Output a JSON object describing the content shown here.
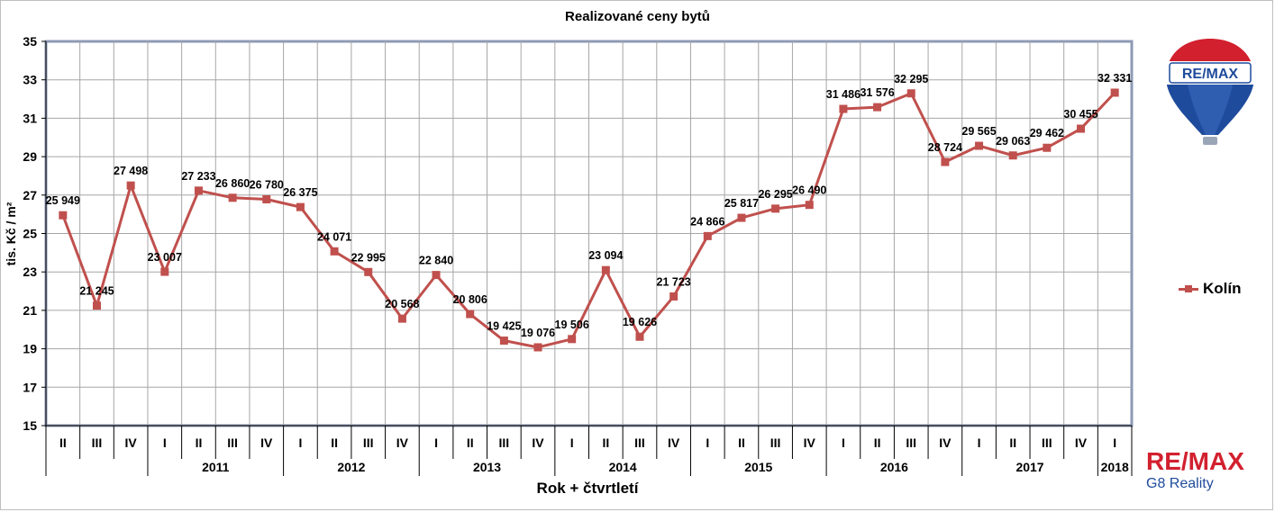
{
  "chart_data": {
    "type": "line",
    "title": "Realizované ceny bytů",
    "xlabel": "Rok + čtvrtletí",
    "ylabel": "tis. Kč / m²",
    "ylim": [
      15,
      35
    ],
    "y_ticks": [
      "15",
      "17",
      "19",
      "21",
      "23",
      "25",
      "27",
      "29",
      "31",
      "33",
      "35"
    ],
    "grid": true,
    "legend_position": "right",
    "categories": [
      "II",
      "III",
      "IV",
      "I",
      "II",
      "III",
      "IV",
      "I",
      "II",
      "III",
      "IV",
      "I",
      "II",
      "III",
      "IV",
      "I",
      "II",
      "III",
      "IV",
      "I",
      "II",
      "III",
      "IV",
      "I",
      "II",
      "III",
      "IV",
      "I",
      "II",
      "III",
      "IV",
      "I"
    ],
    "year_groups": [
      {
        "label": "",
        "start": 0,
        "end": 2
      },
      {
        "label": "2011",
        "start": 3,
        "end": 6
      },
      {
        "label": "2012",
        "start": 7,
        "end": 10
      },
      {
        "label": "2013",
        "start": 11,
        "end": 14
      },
      {
        "label": "2014",
        "start": 15,
        "end": 18
      },
      {
        "label": "2015",
        "start": 19,
        "end": 22
      },
      {
        "label": "2016",
        "start": 23,
        "end": 26
      },
      {
        "label": "2017",
        "start": 27,
        "end": 30
      },
      {
        "label": "2018",
        "start": 31,
        "end": 31
      }
    ],
    "series": [
      {
        "name": "Kolín",
        "color": "#c0504d",
        "values": [
          25.949,
          21.245,
          27.498,
          23.007,
          27.233,
          26.86,
          26.78,
          26.375,
          24.071,
          22.995,
          20.568,
          22.84,
          20.806,
          19.425,
          19.076,
          19.506,
          23.094,
          19.626,
          21.723,
          24.866,
          25.817,
          26.295,
          26.49,
          31.486,
          31.576,
          32.295,
          28.724,
          29.565,
          29.063,
          29.462,
          30.455,
          32.331
        ],
        "labels": [
          "25 949",
          "21 245",
          "27 498",
          "23 007",
          "27 233",
          "26 860",
          "26 780",
          "26 375",
          "24 071",
          "22 995",
          "20 568",
          "22 840",
          "20 806",
          "19 425",
          "19 076",
          "19 506",
          "23 094",
          "19 626",
          "21 723",
          "24 866",
          "25 817",
          "26 295",
          "26 490",
          "31 486",
          "31 576",
          "32 295",
          "28 724",
          "29 565",
          "29 063",
          "29 462",
          "30 455",
          "32 331"
        ]
      }
    ]
  },
  "branding": {
    "balloon_text": "RE/MAX",
    "logo_text": "RE/MAX",
    "logo_subtext": "G8 Reality",
    "brand_red": "#d2202f",
    "brand_blue": "#1f4b9c"
  }
}
